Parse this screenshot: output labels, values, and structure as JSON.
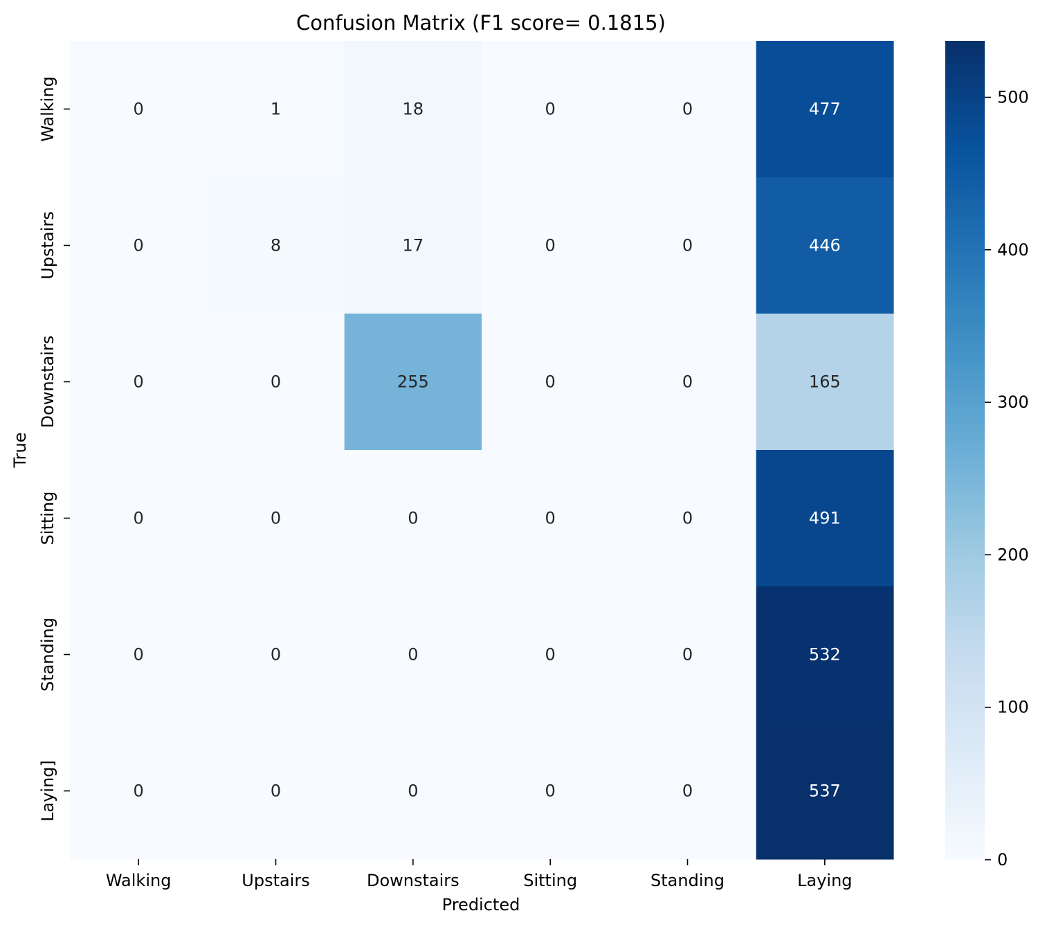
{
  "chart_data": {
    "type": "heatmap",
    "title": "Confusion Matrix (F1 score= 0.1815)",
    "xlabel": "Predicted",
    "ylabel": "True",
    "x_categories": [
      "Walking",
      "Upstairs",
      "Downstairs",
      "Sitting",
      "Standing",
      "Laying"
    ],
    "y_categories": [
      "Walking",
      "Upstairs",
      "Downstairs",
      "Sitting",
      "Standing",
      "Laying]"
    ],
    "values": [
      [
        0,
        1,
        18,
        0,
        0,
        477
      ],
      [
        0,
        8,
        17,
        0,
        0,
        446
      ],
      [
        0,
        0,
        255,
        0,
        0,
        165
      ],
      [
        0,
        0,
        0,
        0,
        0,
        491
      ],
      [
        0,
        0,
        0,
        0,
        0,
        532
      ],
      [
        0,
        0,
        0,
        0,
        0,
        537
      ]
    ],
    "colormap": "Blues",
    "color_range": [
      0,
      537
    ],
    "colorbar_ticks": [
      0,
      100,
      200,
      300,
      400,
      500
    ],
    "colors": {
      "low": "#f7fbff",
      "high": "#08306b"
    }
  }
}
